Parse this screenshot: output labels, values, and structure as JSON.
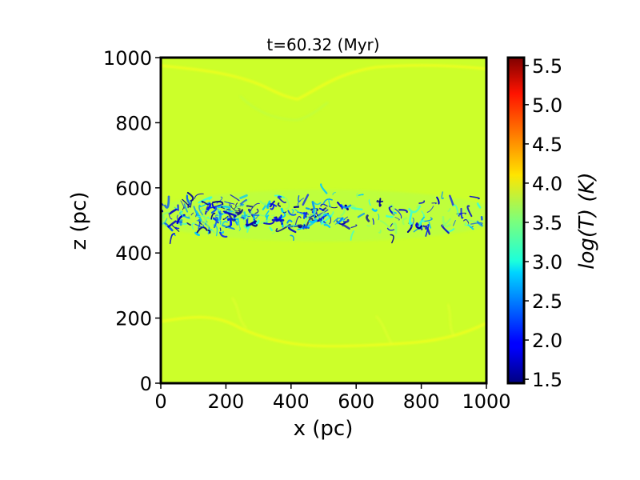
{
  "chart_data": {
    "type": "heatmap",
    "title": "t=60.32 (Myr)",
    "xlabel": "x (pc)",
    "ylabel": "z (pc)",
    "xlim": [
      0,
      1000
    ],
    "ylim": [
      0,
      1000
    ],
    "x_ticks": [
      0,
      200,
      400,
      600,
      800,
      1000
    ],
    "y_ticks": [
      0,
      200,
      400,
      600,
      800,
      1000
    ],
    "x_tick_labels": [
      "0",
      "200",
      "400",
      "600",
      "800",
      "1000"
    ],
    "y_tick_labels": [
      "0",
      "200",
      "400",
      "600",
      "800",
      "1000"
    ],
    "grid": false,
    "colormap": "jet",
    "background_value": 3.95,
    "colorbar": {
      "label": "log(T) (K)",
      "range": [
        1.45,
        5.6
      ],
      "ticks": [
        1.5,
        2.0,
        2.5,
        3.0,
        3.5,
        4.0,
        4.5,
        5.0,
        5.5
      ],
      "tick_labels": [
        "1.5",
        "2.0",
        "2.5",
        "3.0",
        "3.5",
        "4.0",
        "4.5",
        "5.0",
        "5.5"
      ]
    },
    "features": {
      "cold_layer_z_range": [
        420,
        610
      ],
      "upper_shock_front_z": 880,
      "lower_shock_front_z": 150
    }
  }
}
